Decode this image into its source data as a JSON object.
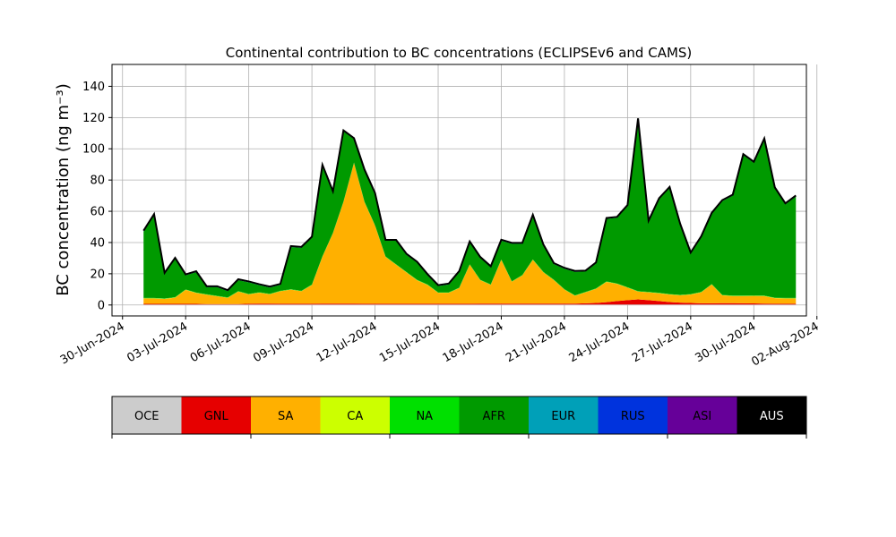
{
  "chart_data": {
    "type": "area",
    "stacked": true,
    "title": "Continental contribution to BC concentrations (ECLIPSEv6 and CAMS)",
    "ylabel": "BC concentration (ng m⁻³)",
    "xlabel": "",
    "ylim": [
      -7,
      154
    ],
    "xlim": [
      "2024-06-29T12:00",
      "2024-08-01T12:00"
    ],
    "grid": true,
    "x_ticks": [
      "30-Jun-2024",
      "03-Jul-2024",
      "06-Jul-2024",
      "09-Jul-2024",
      "12-Jul-2024",
      "15-Jul-2024",
      "18-Jul-2024",
      "21-Jul-2024",
      "24-Jul-2024",
      "27-Jul-2024",
      "30-Jul-2024",
      "02-Aug-2024"
    ],
    "y_ticks": [
      0,
      20,
      40,
      60,
      80,
      100,
      120,
      140
    ],
    "x": [
      "2024-07-01T00:00",
      "2024-07-01T12:00",
      "2024-07-02T00:00",
      "2024-07-02T12:00",
      "2024-07-03T00:00",
      "2024-07-03T12:00",
      "2024-07-04T00:00",
      "2024-07-04T12:00",
      "2024-07-05T00:00",
      "2024-07-05T12:00",
      "2024-07-06T00:00",
      "2024-07-06T12:00",
      "2024-07-07T00:00",
      "2024-07-07T12:00",
      "2024-07-08T00:00",
      "2024-07-08T12:00",
      "2024-07-09T00:00",
      "2024-07-09T12:00",
      "2024-07-10T00:00",
      "2024-07-10T12:00",
      "2024-07-11T00:00",
      "2024-07-11T12:00",
      "2024-07-12T00:00",
      "2024-07-12T12:00",
      "2024-07-13T00:00",
      "2024-07-13T12:00",
      "2024-07-14T00:00",
      "2024-07-14T12:00",
      "2024-07-15T00:00",
      "2024-07-15T12:00",
      "2024-07-16T00:00",
      "2024-07-16T12:00",
      "2024-07-17T00:00",
      "2024-07-17T12:00",
      "2024-07-18T00:00",
      "2024-07-18T12:00",
      "2024-07-19T00:00",
      "2024-07-19T12:00",
      "2024-07-20T00:00",
      "2024-07-20T12:00",
      "2024-07-21T00:00",
      "2024-07-21T12:00",
      "2024-07-22T00:00",
      "2024-07-22T12:00",
      "2024-07-23T00:00",
      "2024-07-23T12:00",
      "2024-07-24T00:00",
      "2024-07-24T12:00",
      "2024-07-25T00:00",
      "2024-07-25T12:00",
      "2024-07-26T00:00",
      "2024-07-26T12:00",
      "2024-07-27T00:00",
      "2024-07-27T12:00",
      "2024-07-28T00:00",
      "2024-07-28T12:00",
      "2024-07-29T00:00",
      "2024-07-29T12:00",
      "2024-07-30T00:00",
      "2024-07-30T12:00",
      "2024-07-31T00:00",
      "2024-07-31T12:00",
      "2024-08-01T00:00"
    ],
    "series": [
      {
        "name": "OCE",
        "color": "#cccccc",
        "values": [
          0.3,
          0.3,
          0.3,
          0.3,
          0.3,
          0.3,
          0.3,
          0.3,
          0.3,
          0.3,
          0.3,
          0.3,
          0.3,
          0.3,
          0.3,
          0.3,
          0.3,
          0.3,
          0.3,
          0.3,
          0.3,
          0.3,
          0.3,
          0.3,
          0.3,
          0.3,
          0.3,
          0.3,
          0.3,
          0.3,
          0.3,
          0.3,
          0.3,
          0.3,
          0.3,
          0.3,
          0.3,
          0.3,
          0.3,
          0.3,
          0.3,
          0.3,
          0.3,
          0.3,
          0.3,
          0.3,
          0.3,
          0.3,
          0.3,
          0.3,
          0.3,
          0.3,
          0.3,
          0.3,
          0.3,
          0.3,
          0.3,
          0.3,
          0.3,
          0.3,
          0.3,
          0.3,
          0.3
        ]
      },
      {
        "name": "GNL",
        "color": "#e60000",
        "values": [
          0.4,
          0.4,
          0.4,
          0.4,
          0.4,
          0.4,
          0.3,
          0.3,
          0.3,
          0.3,
          0.5,
          0.6,
          0.6,
          0.5,
          0.5,
          0.5,
          0.5,
          0.6,
          0.6,
          0.6,
          0.6,
          0.5,
          0.5,
          0.5,
          0.5,
          0.5,
          0.5,
          0.5,
          0.5,
          0.5,
          0.5,
          0.5,
          0.6,
          0.6,
          0.6,
          0.6,
          0.6,
          0.6,
          0.6,
          0.6,
          0.6,
          0.6,
          0.8,
          1.0,
          1.5,
          2.2,
          2.8,
          3.3,
          2.8,
          2.2,
          1.6,
          1.2,
          1.0,
          0.8,
          0.8,
          0.9,
          0.9,
          0.8,
          0.7,
          0.6,
          0.5,
          0.5,
          0.5
        ]
      },
      {
        "name": "SA",
        "color": "#ffb000",
        "values": [
          3.5,
          3.5,
          3.2,
          4.0,
          9.0,
          7.0,
          6.0,
          5.0,
          4.0,
          8.0,
          6.0,
          7.0,
          6.0,
          8.0,
          9.0,
          8.0,
          12.0,
          30.0,
          45.0,
          65.0,
          90.0,
          65.0,
          50.0,
          30.0,
          25.0,
          20.0,
          15.0,
          12.0,
          7.0,
          7.0,
          10.0,
          25.0,
          15.0,
          12.0,
          28.0,
          14.0,
          18.0,
          28.0,
          20.0,
          15.0,
          9.0,
          5.0,
          7.0,
          9.0,
          13.0,
          11.0,
          8.0,
          5.0,
          5.0,
          5.0,
          4.8,
          4.7,
          5.4,
          7.0,
          12.0,
          5.0,
          4.5,
          4.6,
          4.8,
          4.8,
          3.6,
          3.4,
          3.4
        ]
      },
      {
        "name": "CA",
        "color": "#ccff00",
        "values": [
          0.1,
          0.1,
          0.1,
          0.1,
          0.1,
          0.1,
          0.1,
          0.1,
          0.1,
          0.1,
          0.1,
          0.1,
          0.1,
          0.1,
          0.1,
          0.1,
          0.1,
          0.1,
          0.1,
          0.1,
          0.1,
          0.1,
          0.1,
          0.1,
          0.1,
          0.1,
          0.1,
          0.1,
          0.1,
          0.1,
          0.1,
          0.1,
          0.1,
          0.1,
          0.1,
          0.1,
          0.1,
          0.1,
          0.1,
          0.1,
          0.1,
          0.1,
          0.1,
          0.1,
          0.1,
          0.1,
          0.1,
          0.1,
          0.1,
          0.1,
          0.1,
          0.1,
          0.1,
          0.1,
          0.1,
          0.1,
          0.1,
          0.1,
          0.1,
          0.1,
          0.1,
          0.1,
          0.1
        ]
      },
      {
        "name": "NA",
        "color": "#00e000",
        "values": [
          0.2,
          0.2,
          0.2,
          0.2,
          0.2,
          0.2,
          0.2,
          0.2,
          0.2,
          0.2,
          0.2,
          0.2,
          0.2,
          0.2,
          0.2,
          0.2,
          0.2,
          0.2,
          0.2,
          0.2,
          0.2,
          0.2,
          0.2,
          0.2,
          0.2,
          0.2,
          0.2,
          0.2,
          0.2,
          0.2,
          0.2,
          0.2,
          0.2,
          0.2,
          0.2,
          0.2,
          0.2,
          0.2,
          0.2,
          0.2,
          0.2,
          0.2,
          0.2,
          0.2,
          0.2,
          0.2,
          0.2,
          0.2,
          0.2,
          0.2,
          0.2,
          0.2,
          0.2,
          0.2,
          0.2,
          0.2,
          0.2,
          0.2,
          0.2,
          0.2,
          0.2,
          0.2,
          0.2
        ]
      },
      {
        "name": "AFR",
        "color": "#009a00",
        "values": [
          42.5,
          53.1,
          15.8,
          24.6,
          9.0,
          13.0,
          4.5,
          5.5,
          4.0,
          7.0,
          7.4,
          4.5,
          4.0,
          3.8,
          27.0,
          27.5,
          30.0,
          58.0,
          26.0,
          45.0,
          15.0,
          20.0,
          20.0,
          10.0,
          15.0,
          11.0,
          11.0,
          6.0,
          4.0,
          5.0,
          10.0,
          14.0,
          14.0,
          11.0,
          12.0,
          24.0,
          20.0,
          28.0,
          17.0,
          10.0,
          13.0,
          15.0,
          13.0,
          16.0,
          40.0,
          42.0,
          52.0,
          110.0,
          45.0,
          60.0,
          68.0,
          45.0,
          26.0,
          35.0,
          45.0,
          60.0,
          64.0,
          90.0,
          85.0,
          100.0,
          70.0,
          60.0,
          65.0
        ]
      },
      {
        "name": "EUR",
        "color": "#00a0b8",
        "values": [
          0.3,
          0.3,
          0.3,
          0.3,
          0.3,
          0.3,
          0.3,
          0.3,
          0.3,
          0.3,
          0.3,
          0.3,
          0.3,
          0.3,
          0.3,
          0.3,
          0.3,
          0.3,
          0.3,
          0.3,
          0.3,
          0.3,
          0.3,
          0.3,
          0.3,
          0.3,
          0.3,
          0.3,
          0.3,
          0.3,
          0.3,
          0.3,
          0.3,
          0.3,
          0.3,
          0.3,
          0.3,
          0.3,
          0.3,
          0.3,
          0.3,
          0.3,
          0.3,
          0.3,
          0.3,
          0.3,
          0.3,
          0.3,
          0.3,
          0.3,
          0.3,
          0.3,
          0.3,
          0.3,
          0.3,
          0.3,
          0.3,
          0.3,
          0.3,
          0.3,
          0.3,
          0.3,
          0.3
        ]
      },
      {
        "name": "RUS",
        "color": "#0033dd",
        "values": [
          0.1,
          0.1,
          0.1,
          0.1,
          0.1,
          0.1,
          0.1,
          0.1,
          0.1,
          0.1,
          0.1,
          0.1,
          0.1,
          0.1,
          0.1,
          0.1,
          0.1,
          0.1,
          0.1,
          0.1,
          0.1,
          0.1,
          0.1,
          0.1,
          0.1,
          0.1,
          0.1,
          0.1,
          0.1,
          0.1,
          0.1,
          0.1,
          0.1,
          0.1,
          0.1,
          0.1,
          0.1,
          0.1,
          0.1,
          0.1,
          0.1,
          0.1,
          0.1,
          0.1,
          0.1,
          0.1,
          0.1,
          0.1,
          0.1,
          0.1,
          0.1,
          0.1,
          0.1,
          0.1,
          0.1,
          0.1,
          0.1,
          0.1,
          0.1,
          0.1,
          0.1,
          0.1,
          0.1
        ]
      },
      {
        "name": "ASI",
        "color": "#660099",
        "values": [
          0.1,
          0.1,
          0.1,
          0.1,
          0.1,
          0.1,
          0.1,
          0.1,
          0.1,
          0.1,
          0.1,
          0.1,
          0.1,
          0.1,
          0.1,
          0.1,
          0.1,
          0.1,
          0.1,
          0.1,
          0.1,
          0.1,
          0.1,
          0.1,
          0.1,
          0.1,
          0.1,
          0.1,
          0.1,
          0.1,
          0.1,
          0.1,
          0.1,
          0.1,
          0.1,
          0.1,
          0.1,
          0.1,
          0.1,
          0.1,
          0.1,
          0.1,
          0.1,
          0.1,
          0.1,
          0.1,
          0.1,
          0.1,
          0.1,
          0.1,
          0.1,
          0.1,
          0.1,
          0.1,
          0.1,
          0.1,
          0.1,
          0.1,
          0.1,
          0.1,
          0.1,
          0.1,
          0.1
        ]
      },
      {
        "name": "AUS",
        "color": "#000000",
        "values": [
          0.1,
          0.1,
          0.1,
          0.1,
          0.1,
          0.1,
          0.1,
          0.1,
          0.1,
          0.1,
          0.1,
          0.1,
          0.1,
          0.1,
          0.1,
          0.1,
          0.1,
          0.1,
          0.1,
          0.1,
          0.1,
          0.1,
          0.1,
          0.1,
          0.1,
          0.1,
          0.1,
          0.1,
          0.1,
          0.1,
          0.1,
          0.1,
          0.1,
          0.1,
          0.1,
          0.1,
          0.1,
          0.1,
          0.1,
          0.1,
          0.1,
          0.1,
          0.1,
          0.1,
          0.1,
          0.1,
          0.1,
          0.1,
          0.1,
          0.1,
          0.1,
          0.1,
          0.1,
          0.1,
          0.1,
          0.1,
          0.1,
          0.1,
          0.1,
          0.1,
          0.1,
          0.1,
          0.1
        ]
      }
    ],
    "total_line_color": "#000000",
    "legend": {
      "placement": "bottom",
      "entries": [
        {
          "label": "OCE",
          "color": "#cccccc",
          "text_color": "#000000"
        },
        {
          "label": "GNL",
          "color": "#e60000",
          "text_color": "#000000"
        },
        {
          "label": "SA",
          "color": "#ffb000",
          "text_color": "#000000"
        },
        {
          "label": "CA",
          "color": "#ccff00",
          "text_color": "#000000"
        },
        {
          "label": "NA",
          "color": "#00e000",
          "text_color": "#000000"
        },
        {
          "label": "AFR",
          "color": "#009a00",
          "text_color": "#000000"
        },
        {
          "label": "EUR",
          "color": "#00a0b8",
          "text_color": "#000000"
        },
        {
          "label": "RUS",
          "color": "#0033dd",
          "text_color": "#000000"
        },
        {
          "label": "ASI",
          "color": "#660099",
          "text_color": "#000000"
        },
        {
          "label": "AUS",
          "color": "#000000",
          "text_color": "#ffffff"
        }
      ]
    }
  }
}
